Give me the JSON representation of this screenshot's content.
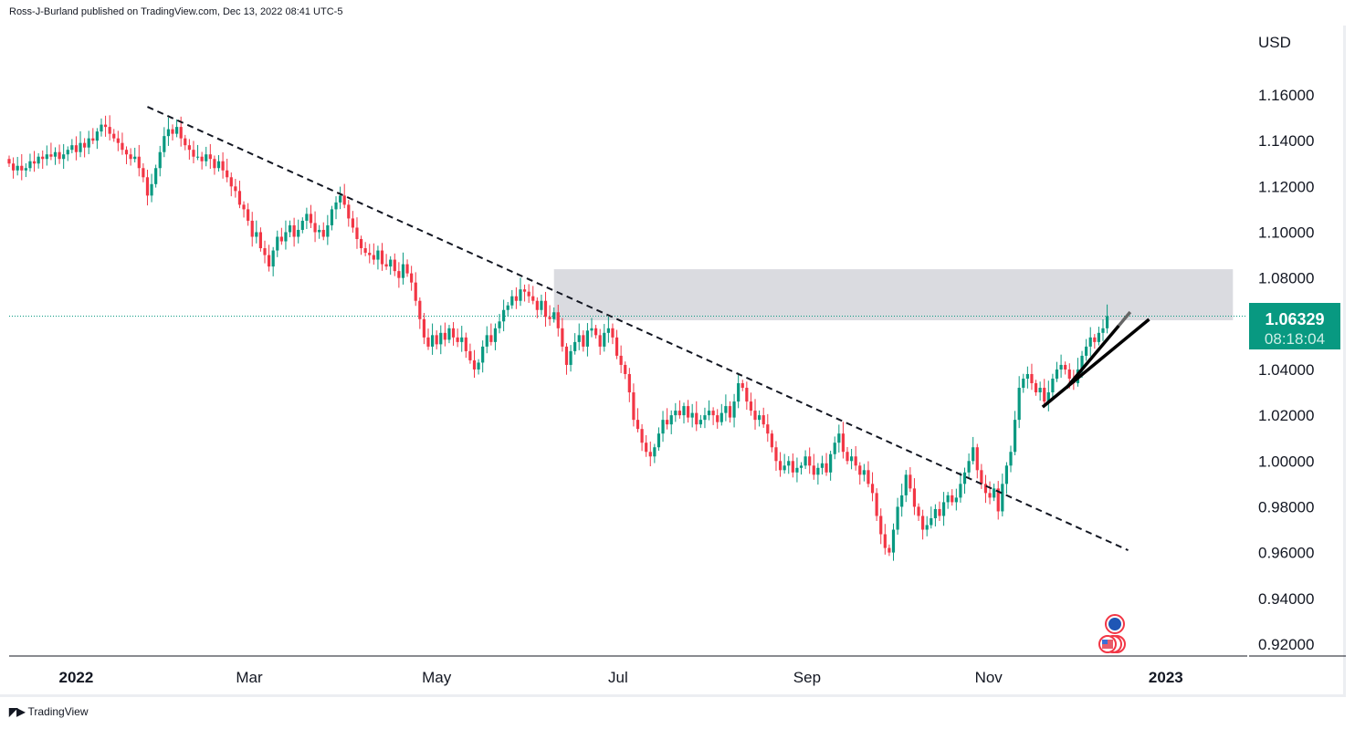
{
  "header": {
    "published": "Ross-J-Burland published on TradingView.com, Dec 13, 2022 08:41 UTC-5"
  },
  "footer": {
    "brand": "TradingView"
  },
  "colors": {
    "up": "#089981",
    "down": "#f23645",
    "zone": "#d8d9de",
    "price_tag": "#089981"
  },
  "chart_data": {
    "type": "candlestick",
    "currency_label": "USD",
    "ylim": [
      0.91,
      1.185
    ],
    "y_ticks": [
      "1.16000",
      "1.14000",
      "1.12000",
      "1.10000",
      "1.08000",
      "1.04000",
      "1.02000",
      "1.00000",
      "0.98000",
      "0.96000",
      "0.94000",
      "0.92000"
    ],
    "x_ticks": [
      {
        "label": "2022",
        "index": 16
      },
      {
        "label": "Mar",
        "index": 57.3
      },
      {
        "label": "May",
        "index": 102
      },
      {
        "label": "Jul",
        "index": 145.3
      },
      {
        "label": "Sep",
        "index": 190.4
      },
      {
        "label": "Nov",
        "index": 233.7
      },
      {
        "label": "2023",
        "index": 276
      }
    ],
    "closes": [
      1.13,
      1.127,
      1.129,
      1.127,
      1.128,
      1.131,
      1.13,
      1.133,
      1.132,
      1.134,
      1.133,
      1.135,
      1.132,
      1.134,
      1.136,
      1.138,
      1.135,
      1.139,
      1.137,
      1.141,
      1.14,
      1.144,
      1.147,
      1.146,
      1.143,
      1.141,
      1.139,
      1.136,
      1.134,
      1.132,
      1.133,
      1.128,
      1.124,
      1.116,
      1.121,
      1.128,
      1.135,
      1.142,
      1.145,
      1.143,
      1.146,
      1.141,
      1.138,
      1.136,
      1.133,
      1.133,
      1.131,
      1.134,
      1.132,
      1.128,
      1.131,
      1.127,
      1.124,
      1.12,
      1.118,
      1.112,
      1.11,
      1.105,
      1.098,
      1.1,
      1.093,
      1.09,
      1.085,
      1.092,
      1.098,
      1.096,
      1.1,
      1.103,
      1.098,
      1.101,
      1.105,
      1.108,
      1.104,
      1.1,
      1.101,
      1.098,
      1.103,
      1.11,
      1.113,
      1.116,
      1.112,
      1.106,
      1.102,
      1.097,
      1.093,
      1.091,
      1.09,
      1.088,
      1.092,
      1.086,
      1.085,
      1.088,
      1.083,
      1.08,
      1.086,
      1.082,
      1.078,
      1.07,
      1.062,
      1.054,
      1.05,
      1.055,
      1.051,
      1.056,
      1.053,
      1.058,
      1.054,
      1.052,
      1.054,
      1.048,
      1.044,
      1.04,
      1.043,
      1.05,
      1.055,
      1.052,
      1.058,
      1.061,
      1.066,
      1.068,
      1.072,
      1.07,
      1.075,
      1.074,
      1.072,
      1.07,
      1.066,
      1.07,
      1.063,
      1.062,
      1.065,
      1.058,
      1.05,
      1.042,
      1.048,
      1.052,
      1.055,
      1.05,
      1.057,
      1.058,
      1.055,
      1.05,
      1.056,
      1.058,
      1.054,
      1.046,
      1.042,
      1.038,
      1.03,
      1.018,
      1.014,
      1.008,
      1.004,
      1.002,
      1.006,
      1.012,
      1.018,
      1.016,
      1.02,
      1.022,
      1.02,
      1.024,
      1.019,
      1.021,
      1.016,
      1.018,
      1.02,
      1.022,
      1.02,
      1.017,
      1.021,
      1.024,
      1.019,
      1.026,
      1.034,
      1.032,
      1.026,
      1.022,
      1.018,
      1.02,
      1.016,
      1.012,
      1.006,
      1.0,
      0.996,
      0.998,
      1.0,
      0.995,
      0.997,
      0.998,
      1.002,
      0.998,
      0.994,
      0.997,
      0.999,
      0.995,
      1.003,
      1.008,
      1.012,
      1.004,
      1.0,
      1.002,
      0.998,
      0.994,
      0.996,
      0.99,
      0.986,
      0.976,
      0.968,
      0.962,
      0.96,
      0.97,
      0.98,
      0.985,
      0.994,
      0.988,
      0.98,
      0.976,
      0.97,
      0.972,
      0.975,
      0.979,
      0.976,
      0.982,
      0.985,
      0.982,
      0.984,
      0.99,
      0.995,
      1.0,
      1.006,
      0.996,
      0.99,
      0.986,
      0.984,
      0.988,
      0.978,
      0.99,
      0.998,
      1.004,
      1.018,
      1.032,
      1.036,
      1.038,
      1.034,
      1.03,
      1.032,
      1.026,
      1.03,
      1.036,
      1.04,
      1.042,
      1.04,
      1.036,
      1.034,
      1.04,
      1.046,
      1.05,
      1.054,
      1.052,
      1.056,
      1.058,
      1.06329
    ],
    "last_price": "1.06329",
    "countdown": "08:18:04",
    "annotations": {
      "downtrend_dashed": {
        "start": {
          "index": 33,
          "price": 1.1548
        },
        "end": {
          "index": 267,
          "price": 0.961
        }
      },
      "support_line_lower": {
        "start": {
          "index": 246.6,
          "price": 1.0236
        },
        "end": {
          "index": 272,
          "price": 1.0619
        }
      },
      "support_line_upper": {
        "start": {
          "index": 252.3,
          "price": 1.032
        },
        "end": {
          "index": 267.5,
          "price": 1.0651
        }
      },
      "resistance_zone": {
        "start_index": 130,
        "end_index": 292,
        "price_low": 1.0615,
        "price_high": 1.0838
      }
    },
    "event_markers": [
      "EU",
      "US"
    ]
  }
}
